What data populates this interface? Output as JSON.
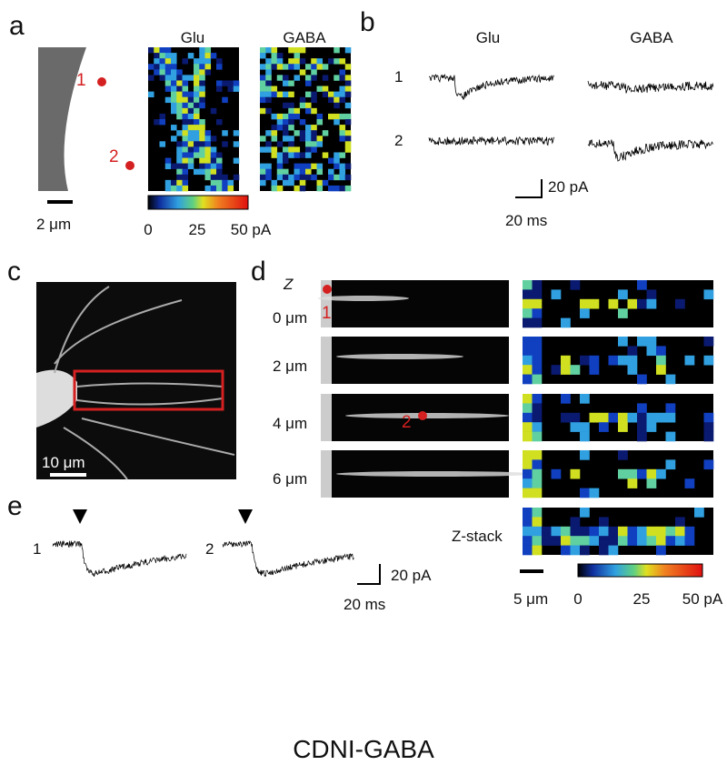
{
  "panel_a": {
    "letter": "a",
    "site_1": "1",
    "site_2": "2",
    "map_glu_title": "Glu",
    "map_gaba_title": "GABA",
    "scale_bar": "2 μm",
    "colorbar_ticks": [
      "0",
      "25",
      "50 pA"
    ]
  },
  "panel_b": {
    "letter": "b",
    "col_glu": "Glu",
    "col_gaba": "GABA",
    "row_1": "1",
    "row_2": "2",
    "scale_y": "20 pA",
    "scale_x": "20 ms"
  },
  "panel_c": {
    "letter": "c",
    "scale_bar": "10 μm"
  },
  "panel_d": {
    "letter": "d",
    "z_label": "Z",
    "depths": [
      "0 μm",
      "2 μm",
      "4 μm",
      "6 μm"
    ],
    "stack_label": "Z-stack",
    "site_1": "1",
    "site_2": "2",
    "scale_bar": "5 μm",
    "colorbar_ticks": [
      "0",
      "25",
      "50 pA"
    ]
  },
  "panel_e": {
    "letter": "e",
    "trace_1": "1",
    "trace_2": "2",
    "scale_y": "20 pA",
    "scale_x": "20 ms"
  },
  "caption": "CDNI-GABA"
}
